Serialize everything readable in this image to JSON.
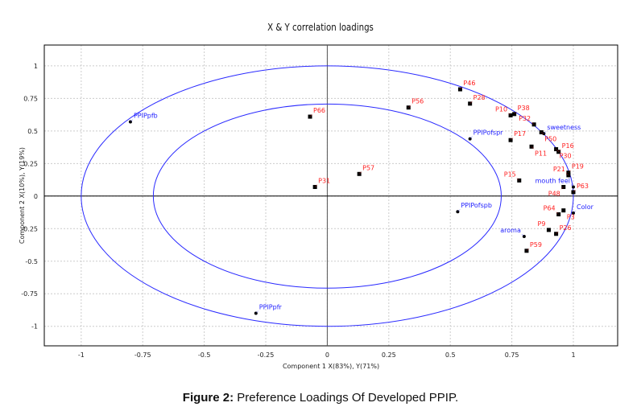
{
  "chart_data": {
    "type": "scatter",
    "title": "X & Y correlation loadings",
    "xlabel": "Component 1 X(83%), Y(71%)",
    "ylabel": "Component 2 X(10%), Y(19%)",
    "xlim": [
      -1.15,
      1.18
    ],
    "ylim": [
      -1.15,
      1.16
    ],
    "xticks": [
      -1,
      -0.75,
      -0.5,
      -0.25,
      0,
      0.25,
      0.5,
      0.75,
      1
    ],
    "yticks": [
      1,
      0.75,
      0.5,
      0.25,
      0,
      -0.25,
      -0.5,
      -0.75,
      -1
    ],
    "grid": true,
    "ellipses": [
      1.0,
      0.707
    ],
    "colors": {
      "x_labels": "#ff2020",
      "y_labels": "#2020ff",
      "ellipse": "#2a2aff",
      "points": "#000000"
    },
    "series": [
      {
        "name": "X",
        "points": [
          {
            "label": "P66",
            "x": -0.07,
            "y": 0.61
          },
          {
            "label": "P56",
            "x": 0.33,
            "y": 0.68
          },
          {
            "label": "P46",
            "x": 0.54,
            "y": 0.82
          },
          {
            "label": "P28",
            "x": 0.58,
            "y": 0.71
          },
          {
            "label": "P10",
            "x": 0.745,
            "y": 0.62
          },
          {
            "label": "P38",
            "x": 0.76,
            "y": 0.63
          },
          {
            "label": "P32",
            "x": 0.84,
            "y": 0.55
          },
          {
            "label": "P50",
            "x": 0.87,
            "y": 0.49
          },
          {
            "label": "P17",
            "x": 0.745,
            "y": 0.43
          },
          {
            "label": "P11",
            "x": 0.83,
            "y": 0.38
          },
          {
            "label": "P30",
            "x": 0.93,
            "y": 0.36
          },
          {
            "label": "P16",
            "x": 0.94,
            "y": 0.34
          },
          {
            "label": "P19",
            "x": 0.98,
            "y": 0.18
          },
          {
            "label": "P21",
            "x": 0.98,
            "y": 0.16
          },
          {
            "label": "P15",
            "x": 0.78,
            "y": 0.12
          },
          {
            "label": "P48",
            "x": 0.96,
            "y": 0.07
          },
          {
            "label": "P63",
            "x": 1.0,
            "y": 0.03
          },
          {
            "label": "P3",
            "x": 0.96,
            "y": -0.11
          },
          {
            "label": "P64",
            "x": 0.94,
            "y": -0.14
          },
          {
            "label": "P9",
            "x": 0.9,
            "y": -0.26
          },
          {
            "label": "P26",
            "x": 0.93,
            "y": -0.29
          },
          {
            "label": "P59",
            "x": 0.81,
            "y": -0.42
          },
          {
            "label": "P57",
            "x": 0.13,
            "y": 0.17
          },
          {
            "label": "P31",
            "x": -0.05,
            "y": 0.07
          }
        ]
      },
      {
        "name": "Y",
        "points": [
          {
            "label": "PPIPpfb",
            "x": -0.8,
            "y": 0.57
          },
          {
            "label": "PPIPofspr",
            "x": 0.58,
            "y": 0.44
          },
          {
            "label": "sweetness",
            "x": 0.88,
            "y": 0.48
          },
          {
            "label": "mouth feel",
            "x": 1.0,
            "y": 0.07
          },
          {
            "label": "Color",
            "x": 1.0,
            "y": -0.13
          },
          {
            "label": "aroma",
            "x": 0.8,
            "y": -0.31
          },
          {
            "label": "PPIPofspb",
            "x": 0.53,
            "y": -0.12
          },
          {
            "label": "PPIPpfr",
            "x": -0.29,
            "y": -0.9
          }
        ]
      }
    ]
  },
  "caption": {
    "prefix": "Figure 2:",
    "text": " Preference Loadings Of Developed PPIP."
  }
}
